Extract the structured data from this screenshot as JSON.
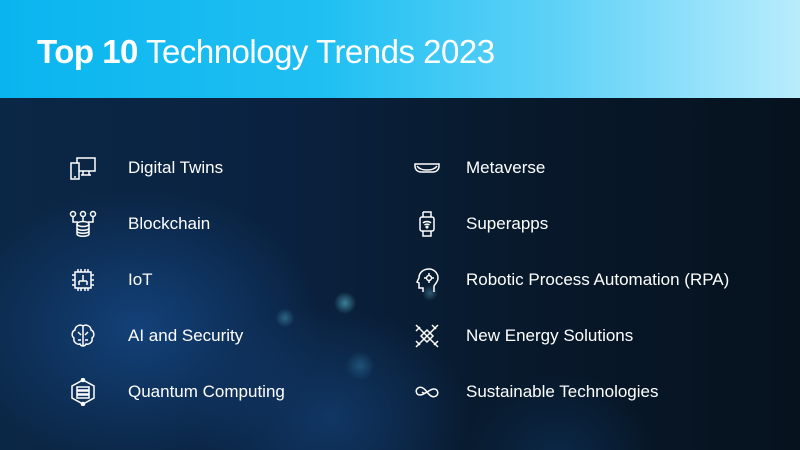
{
  "header": {
    "title_bold": "Top 10",
    "title_rest": "Technology Trends 2023"
  },
  "left_items": [
    {
      "label": "Digital Twins",
      "icon": "devices-icon"
    },
    {
      "label": "Blockchain",
      "icon": "database-network-icon"
    },
    {
      "label": "IoT",
      "icon": "chip-icon"
    },
    {
      "label": "AI and Security",
      "icon": "brain-circuit-icon"
    },
    {
      "label": "Quantum Computing",
      "icon": "quantum-server-icon"
    }
  ],
  "right_items": [
    {
      "label": "Metaverse",
      "icon": "vr-headset-icon"
    },
    {
      "label": "Superapps",
      "icon": "smartwatch-wifi-icon"
    },
    {
      "label": "Robotic Process Automation (RPA)",
      "icon": "head-gear-icon"
    },
    {
      "label": "New Energy Solutions",
      "icon": "handshake-energy-icon"
    },
    {
      "label": "Sustainable Technologies",
      "icon": "infinity-icon"
    }
  ],
  "colors": {
    "header_start": "#0ab5ef",
    "header_end": "#b9ecfc",
    "background": "#07141f",
    "text": "#ffffff"
  }
}
